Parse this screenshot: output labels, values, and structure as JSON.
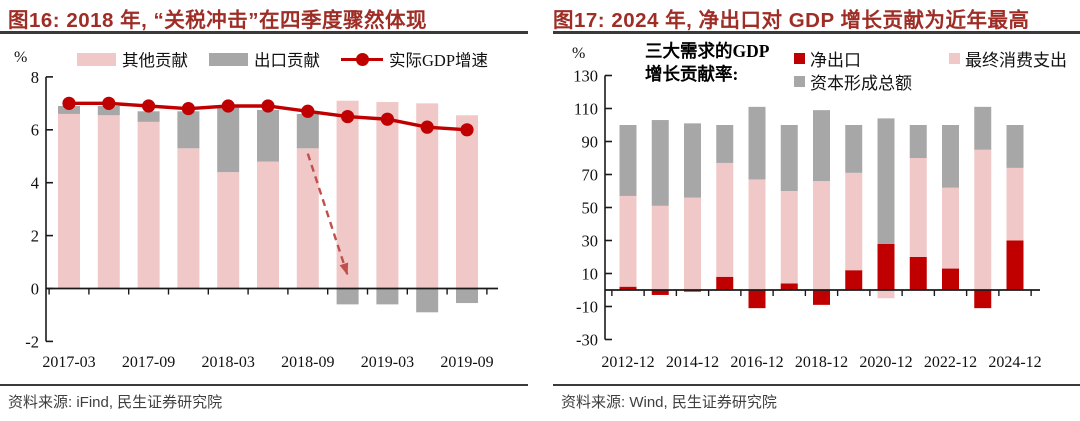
{
  "colors": {
    "pink": "#f0c8c8",
    "gray": "#a7a7a7",
    "red": "#c00000",
    "title": "#9e2d26",
    "arrow": "#c0504d",
    "axis": "#1a1a1a",
    "rule": "#3a3a3a",
    "source_text": "#3f3f3f"
  },
  "left_panel": {
    "title": "图16: 2018 年, “关税冲击”在四季度骤然体现",
    "unit_label": "%",
    "source": "资料来源: iFind, 民生证券研究院",
    "legend": [
      {
        "label": "其他贡献",
        "swatch": "pink"
      },
      {
        "label": "出口贡献",
        "swatch": "gray"
      },
      {
        "label": "实际GDP增速",
        "swatch": "line"
      }
    ]
  },
  "right_panel": {
    "title": "图17: 2024 年, 净出口对 GDP 增长贡献为近年最高",
    "unit_label": "%",
    "source": "资料来源: Wind, 民生证券研究院",
    "legend_header_line1": "三大需求的GDP",
    "legend_header_line2": "增长贡献率:",
    "legend": [
      {
        "label": "净出口",
        "swatch": "red"
      },
      {
        "label": "资本形成总额",
        "swatch": "gray"
      },
      {
        "label": "最终消费支出",
        "swatch": "pink"
      }
    ]
  },
  "chart_data": [
    {
      "type": "bar",
      "title": "2018年,“关税冲击”在四季度骤然体现",
      "categories": [
        "2017-03",
        "2017-06",
        "2017-09",
        "2017-12",
        "2018-03",
        "2018-06",
        "2018-09",
        "2018-12",
        "2019-03",
        "2019-06",
        "2019-09"
      ],
      "x_tick_labels": [
        "2017-03",
        "2017-09",
        "2018-03",
        "2018-09",
        "2019-03",
        "2019-09"
      ],
      "label_every": 2,
      "ylabel": "%",
      "ylim": [
        -2,
        8
      ],
      "yticks": [
        8,
        6,
        4,
        2,
        0,
        -2
      ],
      "series": [
        {
          "name": "其他贡献",
          "type": "bar",
          "color": "pink",
          "values": [
            6.6,
            6.55,
            6.3,
            5.3,
            4.4,
            4.8,
            5.3,
            7.1,
            7.05,
            7.0,
            6.55
          ]
        },
        {
          "name": "出口贡献",
          "type": "bar",
          "color": "gray",
          "values": [
            0.3,
            0.35,
            0.4,
            1.4,
            2.45,
            1.95,
            1.3,
            -0.6,
            -0.6,
            -0.9,
            -0.55
          ]
        },
        {
          "name": "实际GDP增速",
          "type": "line",
          "color": "red",
          "values": [
            7.0,
            7.0,
            6.9,
            6.8,
            6.9,
            6.9,
            6.7,
            6.5,
            6.4,
            6.1,
            6.0
          ]
        }
      ],
      "annotation_arrow": {
        "from_cat": 6,
        "from_value": 5.1,
        "to_cat": 7,
        "to_value": 0.5
      }
    },
    {
      "type": "bar",
      "title": "三大需求的GDP增长贡献率",
      "categories": [
        "2012-12",
        "2013-12",
        "2014-12",
        "2015-12",
        "2016-12",
        "2017-12",
        "2018-12",
        "2019-12",
        "2020-12",
        "2021-12",
        "2022-12",
        "2023-12",
        "2024-12"
      ],
      "x_tick_labels": [
        "2012-12",
        "2014-12",
        "2016-12",
        "2018-12",
        "2020-12",
        "2022-12",
        "2024-12"
      ],
      "label_every": 2,
      "ylabel": "%",
      "ylim": [
        -30,
        130
      ],
      "yticks": [
        130,
        110,
        90,
        70,
        50,
        30,
        10,
        -10,
        -30
      ],
      "series": [
        {
          "name": "净出口",
          "type": "bar",
          "color": "red",
          "values": [
            2,
            -3,
            -1,
            8,
            -11,
            4,
            -9,
            12,
            28,
            20,
            13,
            -11,
            30
          ]
        },
        {
          "name": "最终消费支出",
          "type": "bar",
          "color": "pink",
          "values": [
            55,
            51,
            56,
            69,
            67,
            56,
            66,
            59,
            -5,
            60,
            49,
            85,
            44
          ]
        },
        {
          "name": "资本形成总额",
          "type": "bar",
          "color": "gray",
          "values": [
            43,
            52,
            45,
            23,
            44,
            40,
            43,
            29,
            76,
            20,
            38,
            26,
            26
          ]
        }
      ]
    }
  ]
}
